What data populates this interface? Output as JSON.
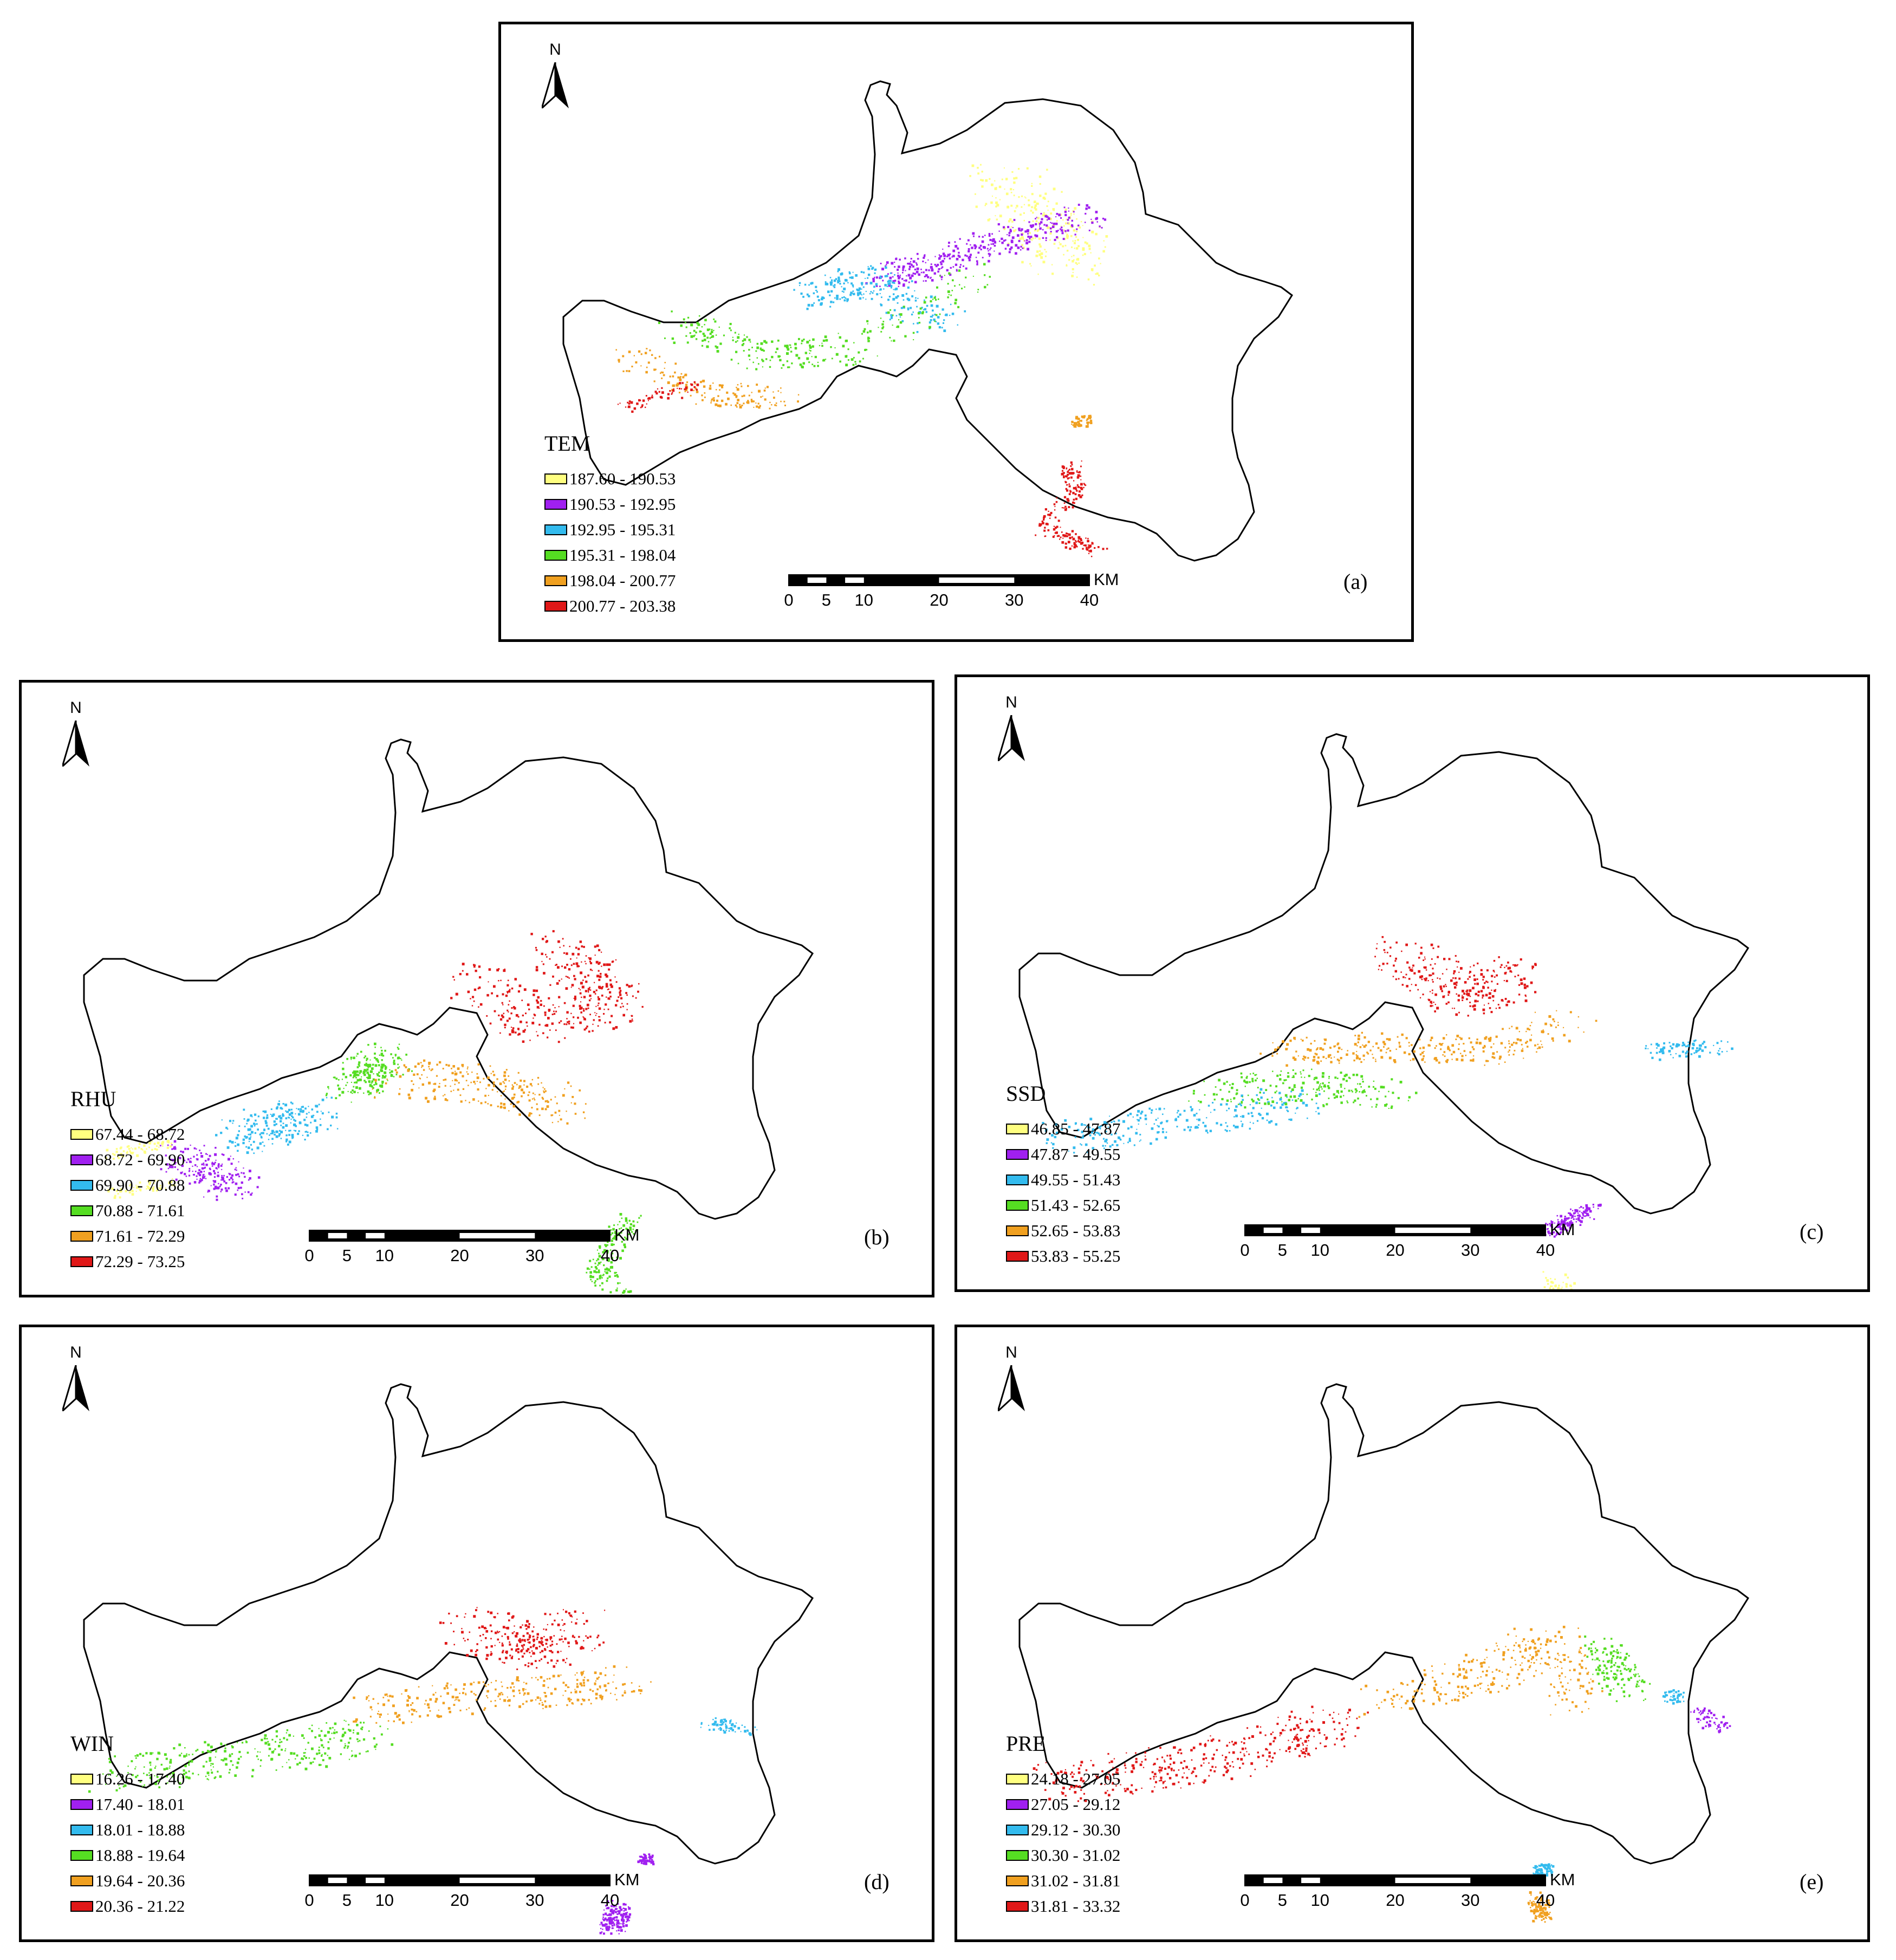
{
  "north_label": "N",
  "scale": {
    "unit": "KM",
    "ticks": [
      "0",
      "5",
      "10",
      "20",
      "30",
      "40"
    ]
  },
  "colors": [
    "#ffff80",
    "#a020f0",
    "#33bbee",
    "#55dd22",
    "#f0a020",
    "#e01818"
  ],
  "panels": [
    {
      "id": "a",
      "label": "(a)",
      "legend_title": "TEM",
      "classes": [
        "187.60 - 190.53",
        "190.53 - 192.95",
        "192.95 - 195.31",
        "195.31 - 198.04",
        "198.04 - 200.77",
        "200.77 - 203.38"
      ]
    },
    {
      "id": "b",
      "label": "(b)",
      "legend_title": "RHU",
      "classes": [
        "67.44 - 68.72",
        "68.72 - 69.90",
        "69.90 - 70.88",
        "70.88 - 71.61",
        "71.61 - 72.29",
        "72.29 - 73.25"
      ]
    },
    {
      "id": "c",
      "label": "(c)",
      "legend_title": "SSD",
      "classes": [
        "46.85 - 47.87",
        "47.87 - 49.55",
        "49.55 - 51.43",
        "51.43 - 52.65",
        "52.65 - 53.83",
        "53.83 - 55.25"
      ]
    },
    {
      "id": "d",
      "label": "(d)",
      "legend_title": "WIN",
      "classes": [
        "16.26 - 17.40",
        "17.40 - 18.01",
        "18.01 - 18.88",
        "18.88 - 19.64",
        "19.64 - 20.36",
        "20.36 - 21.22"
      ]
    },
    {
      "id": "e",
      "label": "(e)",
      "legend_title": "PRE",
      "classes": [
        "24.18 - 27.05",
        "27.05 - 29.12",
        "29.12 - 30.30",
        "30.30 - 31.02",
        "31.02 - 31.81",
        "31.81 - 33.32"
      ]
    }
  ]
}
